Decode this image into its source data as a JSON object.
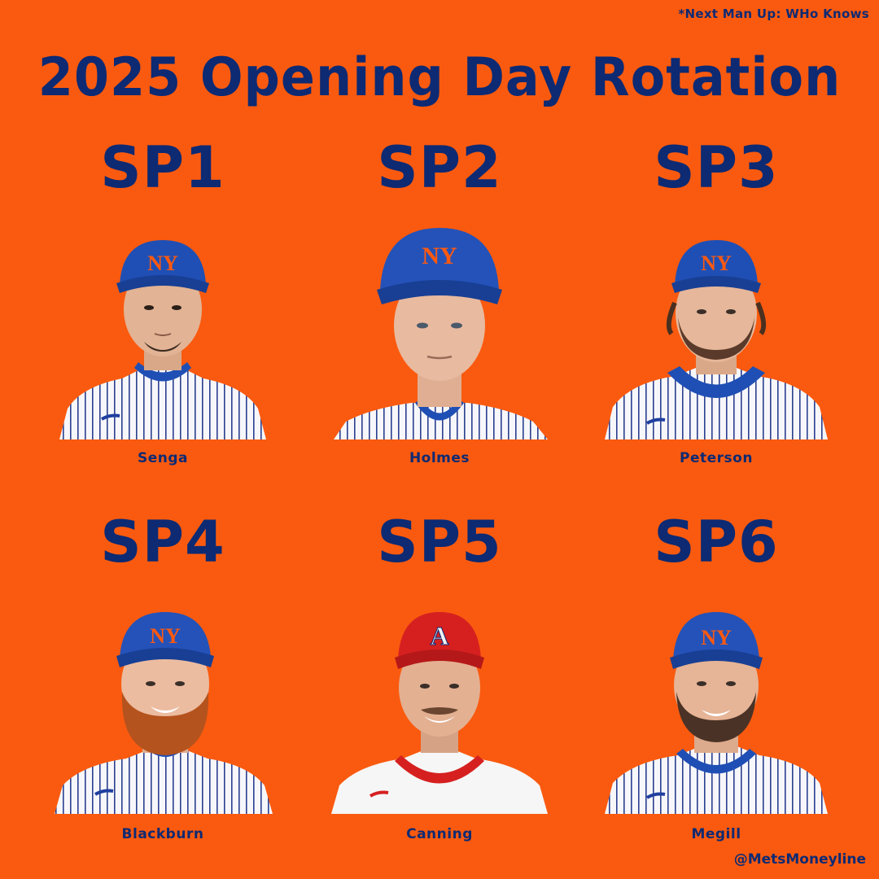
{
  "note": "*Next Man Up: WHo Knows",
  "title": "2025 Opening Day Rotation",
  "credit": "@MetsMoneyline",
  "colors": {
    "background": "#fa5a0f",
    "text": "#0d2a73",
    "mets_blue": "#1f4fb4",
    "mets_orange": "#ff5910",
    "angels_red": "#d62020"
  },
  "slots": [
    {
      "label": "SP1",
      "name": "Senga",
      "team_icon": "mets-cap-logo-icon"
    },
    {
      "label": "SP2",
      "name": "Holmes",
      "team_icon": "mets-cap-logo-icon"
    },
    {
      "label": "SP3",
      "name": "Peterson",
      "team_icon": "mets-cap-logo-icon"
    },
    {
      "label": "SP4",
      "name": "Blackburn",
      "team_icon": "mets-cap-logo-icon"
    },
    {
      "label": "SP5",
      "name": "Canning",
      "team_icon": "angels-cap-logo-icon"
    },
    {
      "label": "SP6",
      "name": "Megill",
      "team_icon": "mets-cap-logo-icon"
    }
  ]
}
